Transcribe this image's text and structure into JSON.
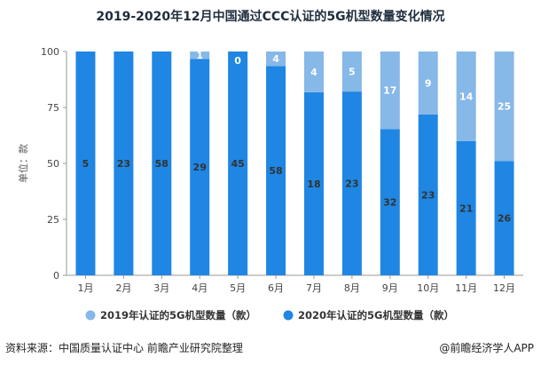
{
  "chart_data": {
    "type": "bar",
    "stacked": true,
    "title": "2019-2020年12月中国通过CCC认证的5G机型数量变化情况",
    "ylabel": "单位：款",
    "xlabel": "",
    "ylim": [
      0,
      100
    ],
    "yticks": [
      0,
      25,
      50,
      75,
      100
    ],
    "categories": [
      "1月",
      "2月",
      "3月",
      "4月",
      "5月",
      "6月",
      "7月",
      "8月",
      "9月",
      "10月",
      "11月",
      "12月"
    ],
    "series": [
      {
        "name": "2020年认证的5G机型数量（款）",
        "color": "#1f86e3",
        "values": [
          5,
          23,
          58,
          29,
          45,
          58,
          18,
          23,
          32,
          23,
          21,
          26
        ],
        "share_percent": [
          100,
          100,
          100,
          96.7,
          100,
          93.5,
          81.8,
          82.1,
          65.3,
          71.9,
          60,
          51
        ]
      },
      {
        "name": "2019年认证的5G机型数量（款）",
        "color": "#86b8e8",
        "values": [
          0,
          0,
          0,
          1,
          0,
          4,
          4,
          5,
          17,
          9,
          14,
          25
        ],
        "share_percent": [
          0,
          0,
          0,
          3.3,
          0,
          6.5,
          18.2,
          17.9,
          34.7,
          28.1,
          40,
          49
        ]
      }
    ],
    "legend_position": "bottom"
  },
  "source": "资料来源：中国质量认证中心 前瞻产业研究院整理",
  "credit": "@前瞻经济学人APP"
}
